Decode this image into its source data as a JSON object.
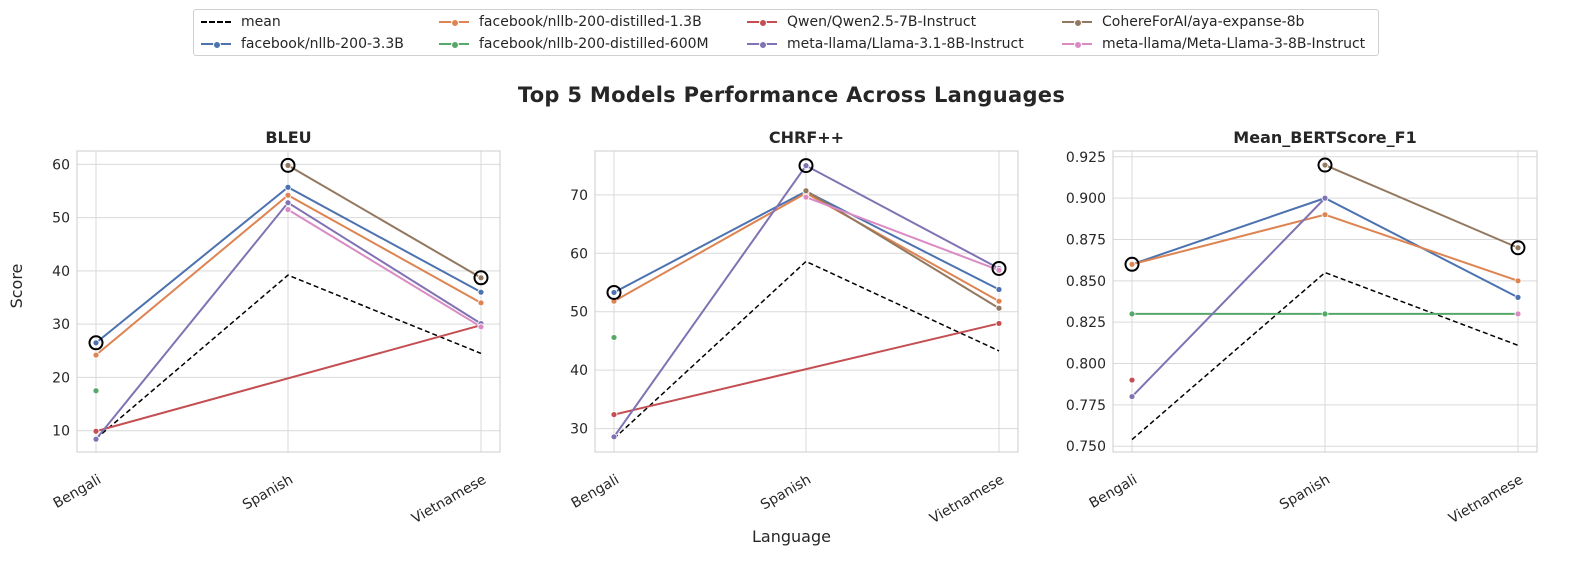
{
  "figure": {
    "title": "Top 5 Models Performance Across Languages",
    "xlabel": "Language",
    "ylabel": "Score"
  },
  "legend": {
    "entries": [
      {
        "name": "mean",
        "color": "#000000",
        "dashed": true,
        "marker": false
      },
      {
        "name": "facebook/nllb-200-3.3B",
        "color": "#4c72b0",
        "dashed": false,
        "marker": true
      },
      {
        "name": "facebook/nllb-200-distilled-1.3B",
        "color": "#dd8452",
        "dashed": false,
        "marker": true
      },
      {
        "name": "facebook/nllb-200-distilled-600M",
        "color": "#55a868",
        "dashed": false,
        "marker": true
      },
      {
        "name": "Qwen/Qwen2.5-7B-Instruct",
        "color": "#c44e52",
        "dashed": false,
        "marker": true
      },
      {
        "name": "meta-llama/Llama-3.1-8B-Instruct",
        "color": "#8172b3",
        "dashed": false,
        "marker": true
      },
      {
        "name": "CohereForAI/aya-expanse-8b",
        "color": "#937860",
        "dashed": false,
        "marker": true
      },
      {
        "name": "meta-llama/Meta-Llama-3-8B-Instruct",
        "color": "#da8bc3",
        "dashed": false,
        "marker": true
      }
    ]
  },
  "chart_data": [
    {
      "type": "line",
      "title": "BLEU",
      "categories": [
        "Bengali",
        "Spanish",
        "Vietnamese"
      ],
      "ylim": [
        6,
        62.5
      ],
      "yticks": [
        10,
        20,
        30,
        40,
        50,
        60
      ],
      "grid": true,
      "series": [
        {
          "name": "mean",
          "values": [
            8.5,
            39.2,
            24.5
          ],
          "color": "#000000",
          "dashed": true,
          "marker": false
        },
        {
          "name": "facebook/nllb-200-3.3B",
          "values": [
            26.5,
            55.7,
            36.0
          ],
          "color": "#4c72b0"
        },
        {
          "name": "facebook/nllb-200-distilled-1.3B",
          "values": [
            24.2,
            54.2,
            34.0
          ],
          "color": "#dd8452"
        },
        {
          "name": "facebook/nllb-200-distilled-600M",
          "values": [
            17.5,
            null,
            null
          ],
          "color": "#55a868"
        },
        {
          "name": "Qwen/Qwen2.5-7B-Instruct",
          "values": [
            9.9,
            null,
            29.8
          ],
          "color": "#c44e52"
        },
        {
          "name": "meta-llama/Llama-3.1-8B-Instruct",
          "values": [
            8.4,
            52.8,
            30.1
          ],
          "color": "#8172b3"
        },
        {
          "name": "CohereForAI/aya-expanse-8b",
          "values": [
            null,
            59.8,
            38.7
          ],
          "color": "#937860"
        },
        {
          "name": "meta-llama/Meta-Llama-3-8B-Instruct",
          "values": [
            null,
            51.5,
            29.5
          ],
          "color": "#da8bc3"
        }
      ],
      "highlighted": [
        {
          "category": "Bengali",
          "value": 26.5
        },
        {
          "category": "Spanish",
          "value": 59.8
        },
        {
          "category": "Vietnamese",
          "value": 38.7
        }
      ]
    },
    {
      "type": "line",
      "title": "CHRF++",
      "categories": [
        "Bengali",
        "Spanish",
        "Vietnamese"
      ],
      "ylim": [
        26,
        77.5
      ],
      "yticks": [
        30,
        40,
        50,
        60,
        70
      ],
      "grid": true,
      "series": [
        {
          "name": "mean",
          "values": [
            28.3,
            58.6,
            43.3
          ],
          "color": "#000000",
          "dashed": true,
          "marker": false
        },
        {
          "name": "facebook/nllb-200-3.3B",
          "values": [
            53.3,
            70.6,
            53.8
          ],
          "color": "#4c72b0"
        },
        {
          "name": "facebook/nllb-200-distilled-1.3B",
          "values": [
            51.8,
            70.3,
            51.8
          ],
          "color": "#dd8452"
        },
        {
          "name": "facebook/nllb-200-distilled-600M",
          "values": [
            45.6,
            null,
            null
          ],
          "color": "#55a868"
        },
        {
          "name": "Qwen/Qwen2.5-7B-Instruct",
          "values": [
            32.4,
            null,
            48.0
          ],
          "color": "#c44e52"
        },
        {
          "name": "meta-llama/Llama-3.1-8B-Instruct",
          "values": [
            28.6,
            75.0,
            57.4
          ],
          "color": "#8172b3"
        },
        {
          "name": "CohereForAI/aya-expanse-8b",
          "values": [
            null,
            70.7,
            50.6
          ],
          "color": "#937860"
        },
        {
          "name": "meta-llama/Meta-Llama-3-8B-Instruct",
          "values": [
            null,
            69.6,
            57.1
          ],
          "color": "#da8bc3"
        }
      ],
      "highlighted": [
        {
          "category": "Bengali",
          "value": 53.3
        },
        {
          "category": "Spanish",
          "value": 75.0
        },
        {
          "category": "Vietnamese",
          "value": 57.4
        }
      ]
    },
    {
      "type": "line",
      "title": "Mean_BERTScore_F1",
      "categories": [
        "Bengali",
        "Spanish",
        "Vietnamese"
      ],
      "ylim": [
        0.7465,
        0.9285
      ],
      "yticks": [
        0.75,
        0.775,
        0.8,
        0.825,
        0.85,
        0.875,
        0.9,
        0.925
      ],
      "ytick_labels": [
        "0.750",
        "0.775",
        "0.800",
        "0.825",
        "0.850",
        "0.875",
        "0.900",
        "0.925"
      ],
      "grid": true,
      "series": [
        {
          "name": "mean",
          "values": [
            0.754,
            0.855,
            0.811
          ],
          "color": "#000000",
          "dashed": true,
          "marker": false
        },
        {
          "name": "facebook/nllb-200-3.3B",
          "values": [
            0.86,
            0.9,
            0.84
          ],
          "color": "#4c72b0"
        },
        {
          "name": "facebook/nllb-200-distilled-1.3B",
          "values": [
            0.86,
            0.89,
            0.85
          ],
          "color": "#dd8452"
        },
        {
          "name": "facebook/nllb-200-distilled-600M",
          "values": [
            0.83,
            0.83,
            0.83
          ],
          "color": "#55a868"
        },
        {
          "name": "Qwen/Qwen2.5-7B-Instruct",
          "values": [
            0.79,
            null,
            null
          ],
          "color": "#c44e52"
        },
        {
          "name": "meta-llama/Llama-3.1-8B-Instruct",
          "values": [
            0.78,
            0.9,
            null
          ],
          "color": "#8172b3"
        },
        {
          "name": "CohereForAI/aya-expanse-8b",
          "values": [
            null,
            0.92,
            0.87
          ],
          "color": "#937860"
        },
        {
          "name": "meta-llama/Meta-Llama-3-8B-Instruct",
          "values": [
            null,
            null,
            0.83
          ],
          "color": "#da8bc3"
        }
      ],
      "highlighted": [
        {
          "category": "Bengali",
          "value": 0.86
        },
        {
          "category": "Spanish",
          "value": 0.92
        },
        {
          "category": "Vietnamese",
          "value": 0.87
        }
      ]
    }
  ]
}
